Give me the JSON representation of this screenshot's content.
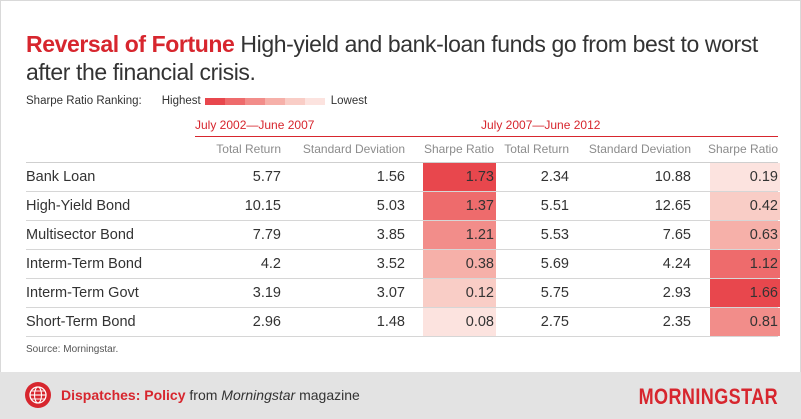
{
  "title": {
    "accent": "Reversal of Fortune",
    "text": "High-yield and bank-loan funds go from best to worst after the financial crisis."
  },
  "legend": {
    "label": "Sharpe Ratio Ranking:",
    "highest": "Highest",
    "lowest": "Lowest",
    "colors": [
      "#e8474d",
      "#ee6b6c",
      "#f28d8a",
      "#f6b0a9",
      "#f9cdc6",
      "#fce3df"
    ]
  },
  "chart_data": {
    "type": "table",
    "periods": [
      "July 2002—June 2007",
      "July 2007—June 2012"
    ],
    "columns": [
      "Total Return",
      "Standard Deviation",
      "Sharpe Ratio"
    ],
    "rows": [
      {
        "label": "Bank Loan",
        "p1": [
          "5.77",
          "1.56",
          "1.73"
        ],
        "p2": [
          "2.34",
          "10.88",
          "0.19"
        ],
        "rank1": 1,
        "rank2": 6
      },
      {
        "label": "High-Yield Bond",
        "p1": [
          "10.15",
          "5.03",
          "1.37"
        ],
        "p2": [
          "5.51",
          "12.65",
          "0.42"
        ],
        "rank1": 2,
        "rank2": 5
      },
      {
        "label": "Multisector Bond",
        "p1": [
          "7.79",
          "3.85",
          "1.21"
        ],
        "p2": [
          "5.53",
          "7.65",
          "0.63"
        ],
        "rank1": 3,
        "rank2": 4
      },
      {
        "label": "Interm-Term Bond",
        "p1": [
          "4.2",
          "3.52",
          "0.38"
        ],
        "p2": [
          "5.69",
          "4.24",
          "1.12"
        ],
        "rank1": 4,
        "rank2": 2
      },
      {
        "label": "Interm-Term Govt",
        "p1": [
          "3.19",
          "3.07",
          "0.12"
        ],
        "p2": [
          "5.75",
          "2.93",
          "1.66"
        ],
        "rank1": 5,
        "rank2": 1
      },
      {
        "label": "Short-Term Bond",
        "p1": [
          "2.96",
          "1.48",
          "0.08"
        ],
        "p2": [
          "2.75",
          "2.35",
          "0.81"
        ],
        "rank1": 6,
        "rank2": 3
      }
    ]
  },
  "source": "Source: Morningstar.",
  "footer": {
    "section": "Dispatches: Policy",
    "from": "from",
    "magazine_name": "Morningstar",
    "magazine_word": "magazine",
    "logo": "MORNINGSTAR",
    "accent_color": "#d7262e"
  }
}
